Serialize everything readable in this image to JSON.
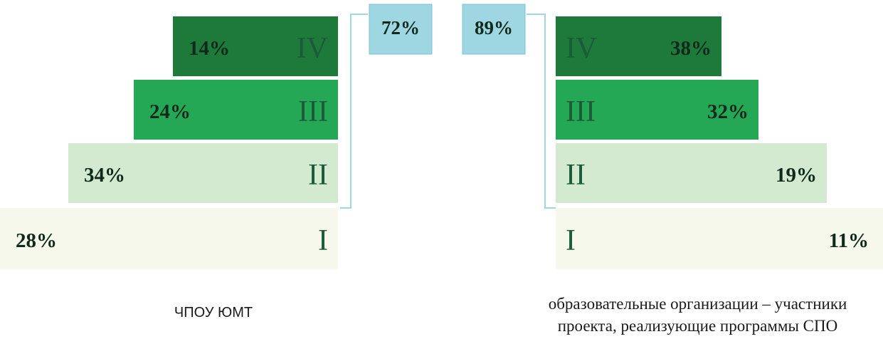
{
  "chart_data": [
    {
      "type": "bar",
      "orientation": "horizontal-pyramid",
      "caption": "ЧПОУ ЮМТ",
      "categories": [
        "IV",
        "III",
        "II",
        "I"
      ],
      "values": [
        14,
        24,
        34,
        28
      ],
      "value_labels": [
        "14%",
        "24%",
        "34%",
        "28%"
      ],
      "bracket_total": "72%",
      "colors": [
        "#1e7a3a",
        "#24a855",
        "#d3ead0",
        "#f7f8ec"
      ]
    },
    {
      "type": "bar",
      "orientation": "horizontal-pyramid",
      "caption": [
        "образовательные организации – участники",
        "проекта, реализующие программы СПО"
      ],
      "categories": [
        "IV",
        "III",
        "II",
        "I"
      ],
      "values": [
        38,
        32,
        19,
        11
      ],
      "value_labels": [
        "38%",
        "32%",
        "19%",
        "11%"
      ],
      "bracket_total": "89%",
      "colors": [
        "#1e7a3a",
        "#24a855",
        "#d3ead0",
        "#f7f8ec"
      ]
    }
  ],
  "accent": {
    "total_box": "#9ed6e2",
    "bracket_line": "#9ed6e2",
    "level_text": "#1b5b3a"
  }
}
